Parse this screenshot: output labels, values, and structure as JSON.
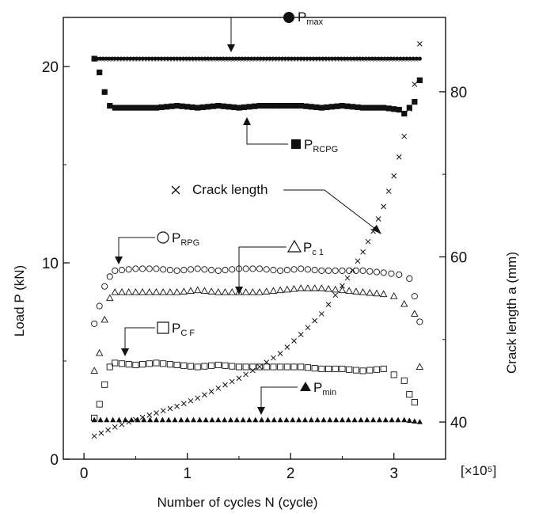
{
  "chart_data": {
    "type": "scatter",
    "title": "",
    "xlabel": "Number of cycles    N (cycle)",
    "ylabel_left": "Load      P (kN)",
    "ylabel_right": "Crack length      a (mm)",
    "x_multiplier": "[×10⁵]",
    "xlim": [
      -0.2,
      3.5
    ],
    "ylim_left": [
      0,
      22.5
    ],
    "ylim_right": [
      35.5,
      89
    ],
    "x_ticks": [
      "0",
      "1",
      "2",
      "3"
    ],
    "y_ticks_left": [
      "0",
      "10",
      "20"
    ],
    "y_ticks_right": [
      "40",
      "60",
      "80"
    ],
    "grid": false,
    "series": [
      {
        "name": "P",
        "subscript": "max",
        "axis": "left",
        "marker": "filled-circle",
        "x": [
          0.1,
          0.3,
          0.6,
          0.9,
          1.2,
          1.5,
          1.8,
          2.1,
          2.4,
          2.7,
          3.0,
          3.25
        ],
        "y": [
          20.4,
          20.4,
          20.4,
          20.4,
          20.4,
          20.4,
          20.4,
          20.4,
          20.4,
          20.4,
          20.4,
          20.4
        ]
      },
      {
        "name": "P",
        "subscript": "RCPG",
        "axis": "left",
        "marker": "filled-square",
        "x": [
          0.1,
          0.15,
          0.2,
          0.25,
          0.3,
          0.5,
          0.7,
          0.9,
          1.1,
          1.3,
          1.5,
          1.7,
          1.9,
          2.1,
          2.3,
          2.5,
          2.7,
          2.9,
          3.05,
          3.1,
          3.2,
          3.25
        ],
        "y": [
          20.4,
          19.7,
          18.7,
          18.0,
          17.9,
          17.9,
          17.9,
          18.0,
          17.9,
          18.0,
          17.9,
          18.0,
          18.0,
          18.0,
          17.9,
          18.0,
          17.9,
          17.9,
          17.8,
          17.6,
          18.2,
          19.3
        ]
      },
      {
        "name": "P",
        "subscript": "RPG",
        "axis": "left",
        "marker": "open-circle",
        "x": [
          0.1,
          0.15,
          0.2,
          0.25,
          0.3,
          0.5,
          0.7,
          0.9,
          1.1,
          1.3,
          1.5,
          1.7,
          1.9,
          2.1,
          2.3,
          2.5,
          2.7,
          2.9,
          3.05,
          3.15,
          3.2,
          3.25
        ],
        "y": [
          6.9,
          7.8,
          8.8,
          9.3,
          9.6,
          9.7,
          9.7,
          9.6,
          9.7,
          9.6,
          9.7,
          9.7,
          9.6,
          9.7,
          9.6,
          9.6,
          9.6,
          9.5,
          9.4,
          9.2,
          8.3,
          7.0
        ]
      },
      {
        "name": "P",
        "subscript": "c1",
        "axis": "left",
        "marker": "open-triangle",
        "x": [
          0.1,
          0.15,
          0.2,
          0.25,
          0.3,
          0.5,
          0.7,
          0.9,
          1.1,
          1.3,
          1.5,
          1.7,
          1.9,
          2.1,
          2.3,
          2.5,
          2.7,
          2.9,
          3.0,
          3.1,
          3.2,
          3.25
        ],
        "y": [
          4.5,
          5.4,
          7.1,
          8.2,
          8.5,
          8.5,
          8.5,
          8.5,
          8.6,
          8.5,
          8.5,
          8.5,
          8.6,
          8.7,
          8.7,
          8.6,
          8.5,
          8.4,
          8.3,
          7.9,
          7.4,
          4.7
        ]
      },
      {
        "name": "P",
        "subscript": "CF",
        "axis": "left",
        "marker": "open-square",
        "x": [
          0.1,
          0.15,
          0.2,
          0.25,
          0.3,
          0.5,
          0.7,
          0.9,
          1.1,
          1.3,
          1.5,
          1.7,
          1.9,
          2.1,
          2.3,
          2.5,
          2.7,
          2.9,
          3.0,
          3.1,
          3.15,
          3.2
        ],
        "y": [
          2.1,
          2.8,
          3.8,
          4.7,
          4.9,
          4.8,
          4.9,
          4.8,
          4.7,
          4.8,
          4.7,
          4.7,
          4.7,
          4.7,
          4.6,
          4.6,
          4.5,
          4.6,
          4.3,
          4.0,
          3.3,
          2.9
        ]
      },
      {
        "name": "P",
        "subscript": "min",
        "axis": "left",
        "marker": "filled-triangle",
        "x": [
          0.1,
          0.4,
          0.7,
          1.0,
          1.3,
          1.6,
          1.9,
          2.2,
          2.5,
          2.8,
          3.1,
          3.25
        ],
        "y": [
          2.0,
          2.0,
          2.0,
          2.0,
          2.0,
          2.0,
          2.0,
          2.0,
          2.0,
          2.0,
          2.0,
          1.9
        ]
      },
      {
        "name": "Crack length",
        "axis": "right",
        "marker": "cross",
        "x": [
          0.1,
          0.3,
          0.5,
          0.7,
          0.9,
          1.1,
          1.3,
          1.5,
          1.7,
          1.9,
          2.1,
          2.3,
          2.5,
          2.6,
          2.7,
          2.8,
          2.9,
          3.0,
          3.05,
          3.1,
          3.15,
          3.2,
          3.25
        ],
        "y": [
          38.3,
          39.4,
          40.3,
          41.1,
          41.9,
          42.9,
          44.1,
          45.3,
          46.7,
          48.3,
          50.6,
          53.1,
          56.5,
          58.4,
          60.6,
          63.1,
          66.1,
          69.8,
          72.1,
          74.6,
          77.9,
          80.9,
          85.8
        ]
      }
    ],
    "annotations": [
      {
        "series": "P_max",
        "text": "P",
        "sub": "max"
      },
      {
        "series": "P_RCPG",
        "text": "P",
        "sub": "RCPG"
      },
      {
        "series": "crack",
        "text": "Crack length"
      },
      {
        "series": "P_RPG",
        "text": "P",
        "sub": "RPG"
      },
      {
        "series": "P_c1",
        "text": "P",
        "sub": "c 1"
      },
      {
        "series": "P_CF",
        "text": "P",
        "sub": "C F"
      },
      {
        "series": "P_min",
        "text": "P",
        "sub": "min"
      }
    ]
  }
}
